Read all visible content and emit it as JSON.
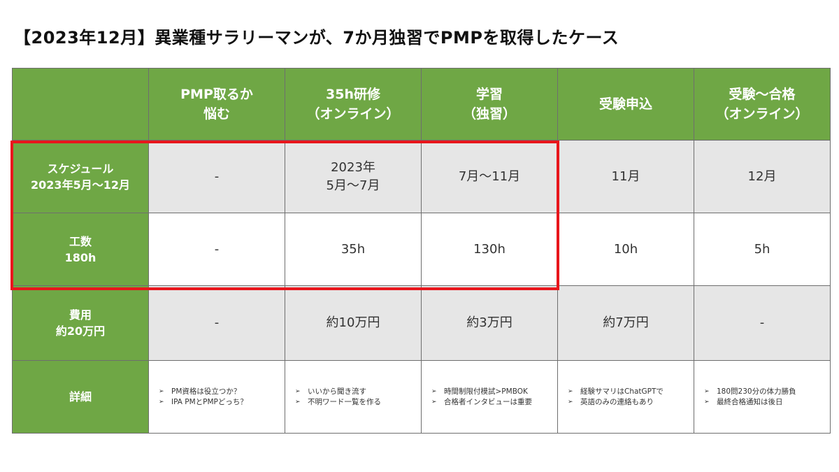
{
  "title": "【2023年12月】異業種サラリーマンが、7か月独習でPMPを取得したケース",
  "columns": [
    {
      "line1": "",
      "line2": ""
    },
    {
      "line1": "PMP取るか",
      "line2": "悩む"
    },
    {
      "line1": "35h研修",
      "line2": "（オンライン）"
    },
    {
      "line1": "学習",
      "line2": "（独習）"
    },
    {
      "line1": "受験申込",
      "line2": ""
    },
    {
      "line1": "受験～合格",
      "line2": "（オンライン）"
    }
  ],
  "rows": {
    "schedule": {
      "label1": "スケジュール",
      "label2": "2023年5月～12月",
      "cells": [
        {
          "line1": "-",
          "line2": ""
        },
        {
          "line1": "2023年",
          "line2": "5月～7月"
        },
        {
          "line1": "7月～11月",
          "line2": ""
        },
        {
          "line1": "11月",
          "line2": ""
        },
        {
          "line1": "12月",
          "line2": ""
        }
      ]
    },
    "effort": {
      "label1": "工数",
      "label2": "180h",
      "cells": [
        "-",
        "35h",
        "130h",
        "10h",
        "5h"
      ]
    },
    "cost": {
      "label1": "費用",
      "label2": "約20万円",
      "cells": [
        "-",
        "約10万円",
        "約3万円",
        "約7万円",
        "-"
      ]
    },
    "detail": {
      "label1": "詳細",
      "cells": [
        [
          "PM資格は役立つか？",
          "IPA PMとPMPどっち？"
        ],
        [
          "いいから聞き流す",
          "不明ワード一覧を作る"
        ],
        [
          "時間制限付模試>PMBOK",
          "合格者インタビューは重要"
        ],
        [
          "経験サマリはChatGPTで",
          "英語のみの連絡もあり"
        ],
        [
          "180問230分の体力勝負",
          "最終合格通知は後日"
        ]
      ]
    }
  },
  "colors": {
    "header_green": "#6fa745",
    "gray_row": "#e6e6e6",
    "highlight_red": "#e8161c"
  }
}
